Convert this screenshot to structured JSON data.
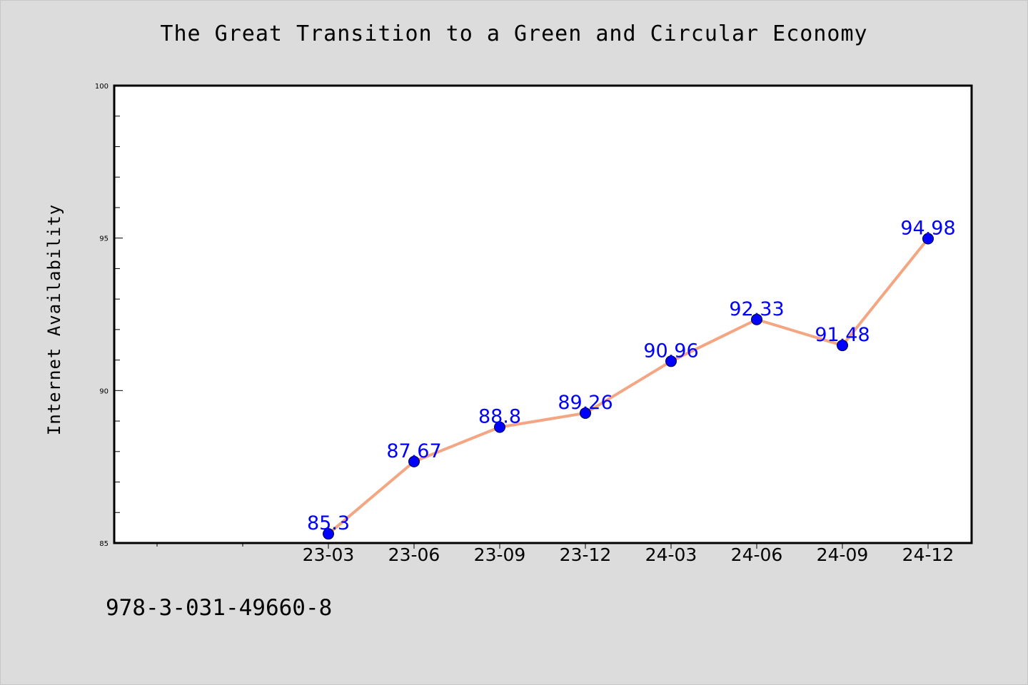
{
  "chart_data": {
    "type": "line",
    "title": "The Great Transition to a Green and Circular Economy",
    "xlabel": "",
    "ylabel": "Internet Availability",
    "categories": [
      "23-03",
      "23-06",
      "23-09",
      "23-12",
      "24-03",
      "24-06",
      "24-09",
      "24-12"
    ],
    "series": [
      {
        "values": [
          85.3,
          87.67,
          88.8,
          89.26,
          90.96,
          92.33,
          91.48,
          94.98
        ],
        "labels": [
          "85.3",
          "87.67",
          "88.8",
          "89.26",
          "90.96",
          "92.33",
          "91.48",
          "94.98"
        ]
      }
    ],
    "ylim": [
      85,
      100
    ],
    "yticks": [
      85,
      90,
      95,
      100
    ],
    "ytick_labels": [
      "85",
      "90",
      "95",
      "100"
    ],
    "grid": false,
    "colors": {
      "line": "#f4a582",
      "marker": "#0000ff",
      "data_label": "#0000ff",
      "plot_background": "#ffffff",
      "figure_background": "#dcdcdc"
    }
  },
  "footer": {
    "isbn": "978-3-031-49660-8"
  }
}
